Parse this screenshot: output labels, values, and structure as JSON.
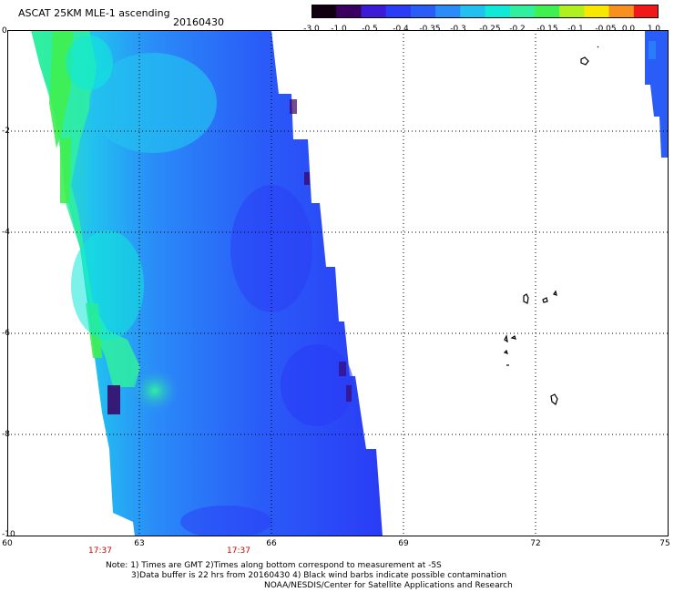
{
  "header": {
    "title": "ASCAT 25KM MLE-1 ascending",
    "date": "20160430"
  },
  "colorbar": {
    "labels": [
      "-3.0",
      "-1.0",
      "-0.5",
      "-0.4",
      "-0.35",
      "-0.3",
      "-0.25",
      "-0.2",
      "-0.15",
      "-0.1",
      "-0.05",
      "0.0",
      "1.0"
    ],
    "colors": [
      "#100010",
      "#3a0060",
      "#3c1ad8",
      "#2a3cf6",
      "#2a5cf8",
      "#2a8cf8",
      "#22c0f0",
      "#10e8d8",
      "#30f0a0",
      "#40f050",
      "#b0f020",
      "#f8e800",
      "#f89020",
      "#f01818"
    ]
  },
  "axes": {
    "x_ticks": [
      "60",
      "63",
      "66",
      "69",
      "72",
      "75"
    ],
    "y_ticks": [
      "0",
      "-2",
      "-4",
      "-6",
      "-8",
      "-10"
    ],
    "time_labels": [
      "17:37",
      "17:37"
    ]
  },
  "notes": {
    "line1": "Note: 1) Times are GMT 2)Times along bottom correspond to measurement at -5S",
    "line2": "3)Data buffer is 22 hrs from 20160430 4) Black wind barbs indicate possible contamination",
    "line3": "NOAA/NESDIS/Center for Satellite Applications and Research"
  }
}
